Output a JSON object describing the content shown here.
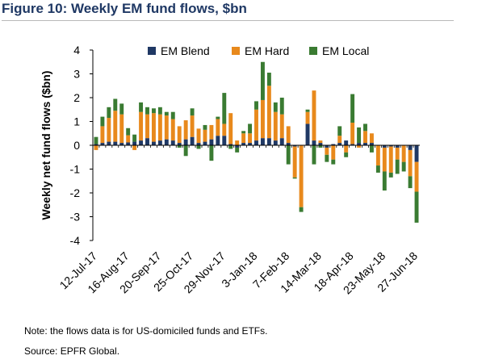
{
  "figure": {
    "title": "Figure 10: Weekly EM fund flows, $bn",
    "note": "Note: the flows data is for US-domiciled funds and ETFs.",
    "source": "Source: EPFR Global."
  },
  "chart_data": {
    "type": "bar",
    "stacked": true,
    "ylabel": "Weekly net fund flows ($bn)",
    "xlabel": "",
    "ylim": [
      -4,
      4
    ],
    "yticks": [
      4,
      3,
      2,
      1,
      0,
      -1,
      -2,
      -3,
      -4
    ],
    "ytick_labels": [
      "4",
      "3",
      "2",
      "1",
      "0",
      "-1",
      "-2",
      "-3",
      "-4"
    ],
    "legend_position": "top",
    "xtick_labels": [
      "12-Jul-17",
      "16-Aug-17",
      "20-Sep-17",
      "25-Oct-17",
      "29-Nov-17",
      "3-Jan-18",
      "7-Feb-18",
      "14-Mar-18",
      "18-Apr-18",
      "23-May-18",
      "27-Jun-18"
    ],
    "categories": [
      "12-Jul-17",
      "19-Jul-17",
      "26-Jul-17",
      "2-Aug-17",
      "9-Aug-17",
      "16-Aug-17",
      "23-Aug-17",
      "30-Aug-17",
      "6-Sep-17",
      "13-Sep-17",
      "20-Sep-17",
      "27-Sep-17",
      "4-Oct-17",
      "11-Oct-17",
      "18-Oct-17",
      "25-Oct-17",
      "1-Nov-17",
      "8-Nov-17",
      "15-Nov-17",
      "22-Nov-17",
      "29-Nov-17",
      "6-Dec-17",
      "13-Dec-17",
      "20-Dec-17",
      "27-Dec-17",
      "3-Jan-18",
      "10-Jan-18",
      "17-Jan-18",
      "24-Jan-18",
      "31-Jan-18",
      "7-Feb-18",
      "14-Feb-18",
      "21-Feb-18",
      "28-Feb-18",
      "7-Mar-18",
      "14-Mar-18",
      "21-Mar-18",
      "28-Mar-18",
      "4-Apr-18",
      "11-Apr-18",
      "18-Apr-18",
      "25-Apr-18",
      "2-May-18",
      "9-May-18",
      "16-May-18",
      "23-May-18",
      "30-May-18",
      "6-Jun-18",
      "13-Jun-18",
      "20-Jun-18",
      "27-Jun-18"
    ],
    "series": [
      {
        "name": "EM Blend",
        "color": "#1f3864",
        "values": [
          0.05,
          0.1,
          0.15,
          0.15,
          0.1,
          0.12,
          0.15,
          0.2,
          0.3,
          0.15,
          0.2,
          0.25,
          0.2,
          0.1,
          0.25,
          0.35,
          0.1,
          0.15,
          0.25,
          0.4,
          0.4,
          0.05,
          -0.1,
          0.1,
          0.1,
          0.2,
          0.3,
          0.3,
          0.2,
          0.3,
          0.1,
          -0.05,
          0.0,
          0.9,
          0.2,
          0.1,
          -0.1,
          0.05,
          0.1,
          0.2,
          0.05,
          0.1,
          0.1,
          0.1,
          0.0,
          -0.1,
          -0.05,
          -0.1,
          0.0,
          -0.2,
          -0.7
        ]
      },
      {
        "name": "EM Hard",
        "color": "#e8891c",
        "values": [
          -0.2,
          0.7,
          1.0,
          1.3,
          1.2,
          0.3,
          -0.2,
          1.2,
          1.0,
          1.2,
          1.1,
          1.0,
          0.9,
          0.7,
          0.8,
          0.9,
          0.6,
          0.5,
          0.6,
          0.7,
          0.5,
          1.3,
          0.2,
          0.4,
          0.4,
          1.3,
          1.6,
          2.2,
          1.2,
          1.0,
          0.7,
          -1.3,
          -2.6,
          0.5,
          2.1,
          0.1,
          -0.3,
          -0.6,
          0.3,
          -0.3,
          0.9,
          -0.1,
          0.5,
          0.4,
          -0.85,
          -1.0,
          -1.1,
          -0.5,
          -0.7,
          -1.1,
          -1.25
        ]
      },
      {
        "name": "EM Local",
        "color": "#3a7b32",
        "values": [
          0.3,
          0.4,
          0.45,
          0.5,
          0.45,
          0.3,
          0.3,
          0.4,
          0.3,
          0.2,
          0.3,
          0.15,
          0.3,
          -0.1,
          -0.45,
          0.3,
          -0.15,
          0.2,
          -0.65,
          0.1,
          1.3,
          -0.15,
          -0.2,
          0.1,
          0.4,
          0.35,
          1.6,
          0.55,
          0.4,
          0.7,
          -0.8,
          -0.05,
          -0.2,
          0.1,
          -0.8,
          -0.1,
          -0.3,
          -0.2,
          0.4,
          -0.2,
          1.2,
          0.65,
          0.3,
          -0.3,
          -0.3,
          -0.8,
          -0.2,
          -0.6,
          -0.4,
          -0.5,
          -1.3
        ]
      }
    ]
  }
}
